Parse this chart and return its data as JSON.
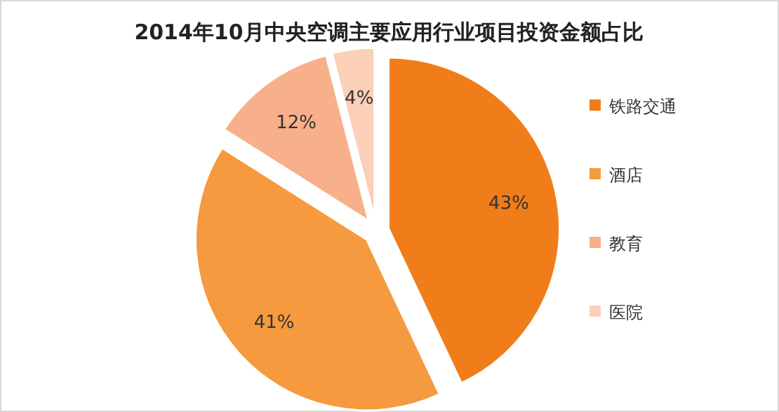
{
  "chart_data": {
    "type": "pie",
    "title": "2014年10月中央空调主要应用行业项目投资金额占比",
    "categories": [
      "铁路交通",
      "酒店",
      "教育",
      "医院"
    ],
    "values": [
      43,
      41,
      12,
      4
    ],
    "colors": [
      "#f07d1a",
      "#f59a3e",
      "#f7b08a",
      "#fbcfb8"
    ],
    "value_labels": [
      "43%",
      "41%",
      "12%",
      "4%"
    ],
    "legend": "right"
  }
}
